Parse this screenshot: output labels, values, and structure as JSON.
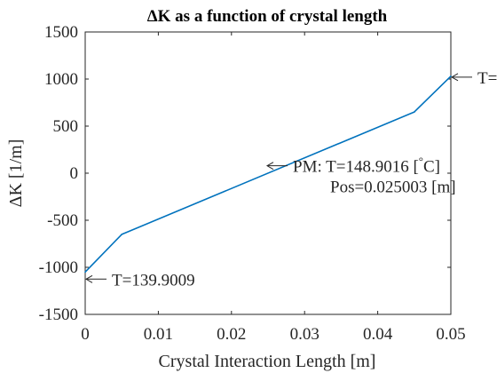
{
  "chart_data": {
    "type": "line",
    "title": "ΔK as a function of crystal length",
    "xlabel": "Crystal Interaction Length [m]",
    "ylabel": "ΔK [1/m]",
    "xlim": [
      0,
      0.05
    ],
    "ylim": [
      -1500,
      1500
    ],
    "xticks": [
      0,
      0.01,
      0.02,
      0.03,
      0.04,
      0.05
    ],
    "xtick_labels": [
      "0",
      "0.01",
      "0.02",
      "0.03",
      "0.04",
      "0.05"
    ],
    "yticks": [
      -1500,
      -1000,
      -500,
      0,
      500,
      1000,
      1500
    ],
    "ytick_labels": [
      "-1500",
      "-1000",
      "-500",
      "0",
      "500",
      "1000",
      "1500"
    ],
    "grid": false,
    "series": [
      {
        "color": "#0072bd",
        "x": [
          0,
          0.005,
          0.045,
          0.05
        ],
        "y": [
          -1050,
          -650,
          650,
          1030
        ]
      }
    ],
    "annotations": [
      {
        "text": "T=139.9009",
        "x": 0,
        "y": -1050
      },
      {
        "text": "PM: T=148.9016 [",
        "degree": "°",
        "text_after": "C]",
        "line2": "Pos=0.025003 [m]",
        "x": 0.025,
        "y": 60
      },
      {
        "text": "T=",
        "x": 0.05,
        "y": 1030
      }
    ]
  }
}
